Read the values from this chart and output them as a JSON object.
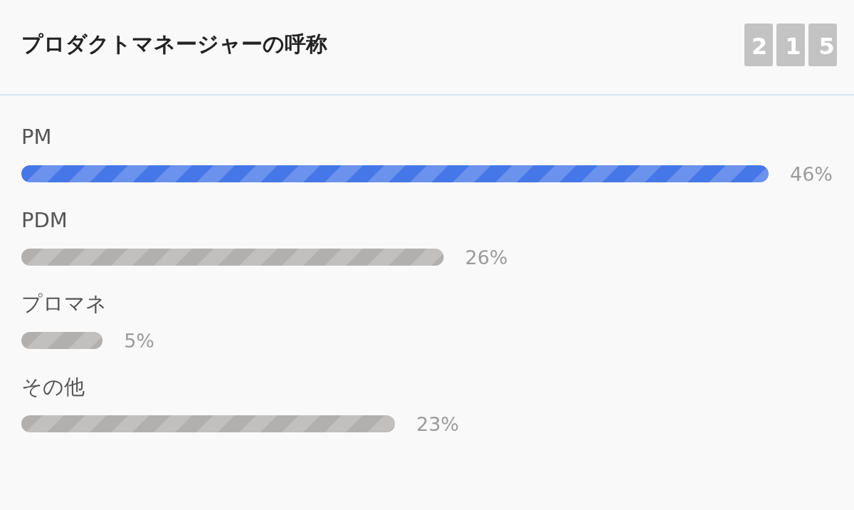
{
  "chart_data": {
    "type": "bar",
    "orientation": "horizontal",
    "title": "プロダクトマネージャーの呼称",
    "categories": [
      "PM",
      "PDM",
      "プロマネ",
      "その他"
    ],
    "values": [
      46,
      26,
      5,
      23
    ],
    "colors": [
      "#4677e8",
      "#b2b0af",
      "#b2b0af",
      "#b2b0af"
    ],
    "value_labels": [
      "46%",
      "26%",
      "5%",
      "23%"
    ],
    "annotations": [
      "215"
    ]
  }
}
